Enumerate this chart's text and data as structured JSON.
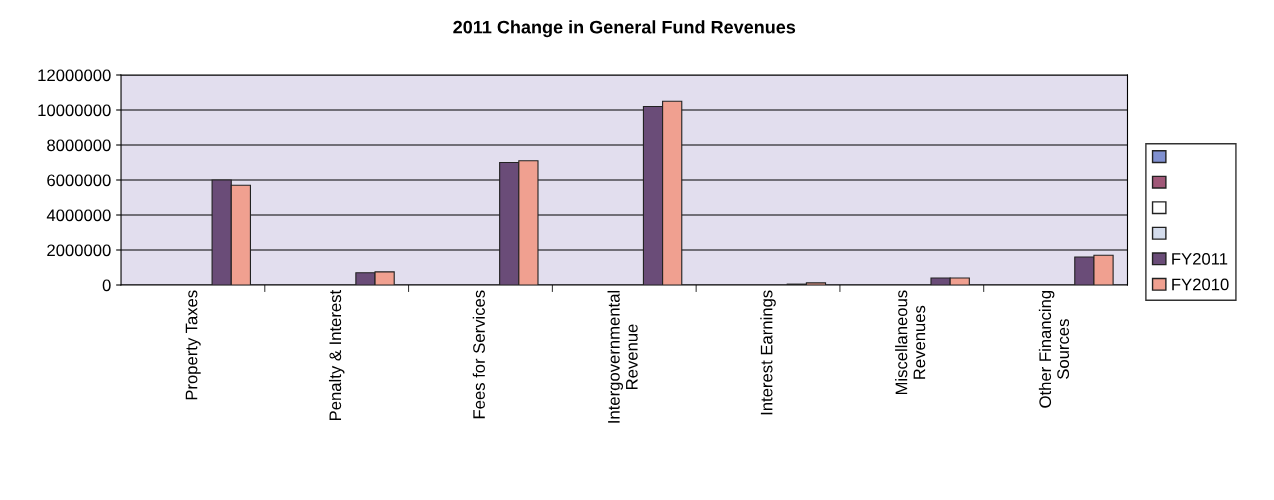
{
  "chart_data": {
    "type": "bar",
    "title": "2011 Change in General Fund Revenues",
    "categories": [
      "Property Taxes",
      "Penalty & Interest",
      "Fees for Services",
      "Intergovernmental\nRevenue",
      "Interest Earnings",
      "Miscellaneous\nRevenues",
      "Other Financing\nSources"
    ],
    "series": [
      {
        "color": "#8090d0",
        "values": [
          null,
          null,
          null,
          null,
          null,
          null,
          null
        ]
      },
      {
        "color": "#a05878",
        "values": [
          null,
          null,
          null,
          null,
          null,
          null,
          null
        ]
      },
      {
        "color": "#ffffff",
        "values": [
          null,
          null,
          null,
          null,
          null,
          null,
          null
        ]
      },
      {
        "color": "#d4dcec",
        "values": [
          null,
          null,
          null,
          null,
          null,
          null,
          null
        ]
      },
      {
        "name": "FY2011",
        "color": "#6a4c78",
        "values": [
          6000000,
          700000,
          7000000,
          10200000,
          50000,
          400000,
          1600000
        ]
      },
      {
        "name": "FY2010",
        "color": "#f0a090",
        "values": [
          5700000,
          750000,
          7100000,
          10500000,
          120000,
          400000,
          1700000
        ]
      }
    ],
    "ylim": [
      0,
      12000000
    ],
    "yticks": [
      0,
      2000000,
      4000000,
      6000000,
      8000000,
      10000000,
      12000000
    ],
    "grid": "y",
    "legend": "right"
  }
}
